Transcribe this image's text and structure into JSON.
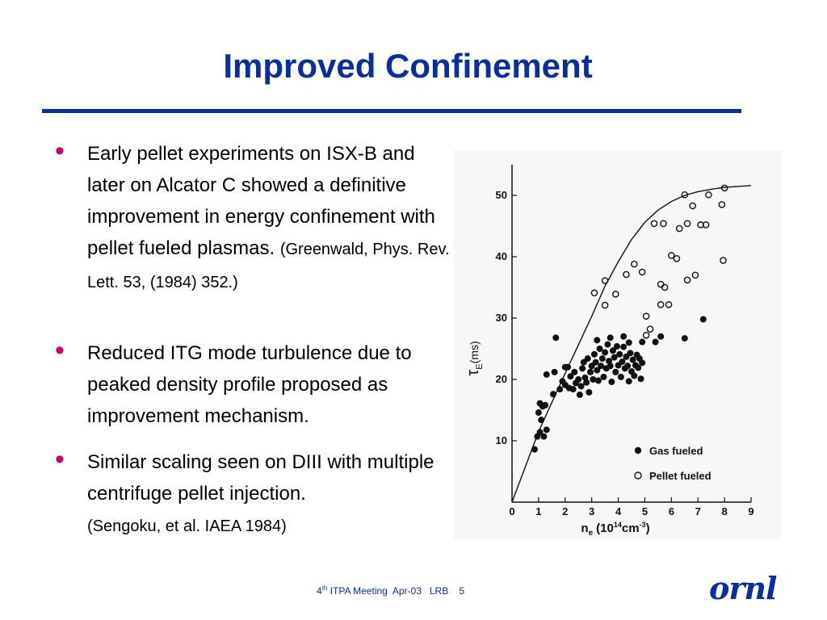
{
  "slide": {
    "title": "Improved Confinement",
    "bullets": [
      {
        "text": "Early pellet experiments on ISX-B and later on Alcator C showed a definitive improvement in energy confinement with pellet fueled plasmas.",
        "ref": "(Greenwald, Phys. Rev. Lett. 53, (1984) 352.)"
      },
      {
        "text": "Reduced ITG mode turbulence due to peaked density profile proposed as improvement mechanism.",
        "ref": ""
      },
      {
        "text": "Similar scaling seen on DIII with multiple centrifuge pellet injection.",
        "ref": "(Sengoku, et al. IAEA 1984)"
      }
    ],
    "bullet_color": "#d0006f",
    "accent_color": "#0a2e9c"
  },
  "footer": {
    "meeting_sup": "th",
    "meeting_num": "4",
    "meeting_text": " ITPA Meeting  Apr-03   LRB    5",
    "logo_text": "ornl"
  },
  "chart_data": {
    "type": "scatter",
    "xlim": [
      0,
      9
    ],
    "ylim": [
      0,
      55
    ],
    "x_ticks": [
      "0",
      "1",
      "2",
      "3",
      "4",
      "5",
      "6",
      "7",
      "8",
      "9"
    ],
    "y_ticks": [
      "10",
      "20",
      "30",
      "40",
      "50"
    ],
    "y_tick_values": [
      10,
      20,
      30,
      40,
      50
    ],
    "ylabel_main": "τ",
    "ylabel_sub": "E",
    "ylabel_unit": "(ms)",
    "xlabel_main": "n",
    "xlabel_sub": "e",
    "xlabel_unit": "(10",
    "xlabel_exp": "14",
    "xlabel_unit2": "cm",
    "xlabel_exp2": "-3",
    "xlabel_close": ")",
    "legend_position": "bottom-right",
    "series": [
      {
        "name": "Gas fueled",
        "marker": "filled",
        "points": [
          [
            0.85,
            8.6
          ],
          [
            0.95,
            10.7
          ],
          [
            1.05,
            11.4
          ],
          [
            1.1,
            13.4
          ],
          [
            1.0,
            14.6
          ],
          [
            1.15,
            15.6
          ],
          [
            1.05,
            16.1
          ],
          [
            1.25,
            15.8
          ],
          [
            1.2,
            10.7
          ],
          [
            1.3,
            11.8
          ],
          [
            1.55,
            17.6
          ],
          [
            1.6,
            21.2
          ],
          [
            1.8,
            18.4
          ],
          [
            1.9,
            19.7
          ],
          [
            2.0,
            19.1
          ],
          [
            2.1,
            22.0
          ],
          [
            2.15,
            18.6
          ],
          [
            2.2,
            20.5
          ],
          [
            2.3,
            18.4
          ],
          [
            2.35,
            21.2
          ],
          [
            2.4,
            19.4
          ],
          [
            2.5,
            20.0
          ],
          [
            2.55,
            17.5
          ],
          [
            2.6,
            18.9
          ],
          [
            2.65,
            21.8
          ],
          [
            2.7,
            22.8
          ],
          [
            2.75,
            20.3
          ],
          [
            2.8,
            19.5
          ],
          [
            2.85,
            23.4
          ],
          [
            2.9,
            17.9
          ],
          [
            2.95,
            21.2
          ],
          [
            3.0,
            22.2
          ],
          [
            3.05,
            20.0
          ],
          [
            3.1,
            24.1
          ],
          [
            3.15,
            22.8
          ],
          [
            3.2,
            21.5
          ],
          [
            3.25,
            19.8
          ],
          [
            3.3,
            25.0
          ],
          [
            3.35,
            22.2
          ],
          [
            3.4,
            23.4
          ],
          [
            3.45,
            20.4
          ],
          [
            3.5,
            24.4
          ],
          [
            3.55,
            21.8
          ],
          [
            3.6,
            25.7
          ],
          [
            3.65,
            23.0
          ],
          [
            3.7,
            22.2
          ],
          [
            3.75,
            19.6
          ],
          [
            3.8,
            24.7
          ],
          [
            3.85,
            23.6
          ],
          [
            3.9,
            21.2
          ],
          [
            3.95,
            25.4
          ],
          [
            4.0,
            22.3
          ],
          [
            4.05,
            24.1
          ],
          [
            4.1,
            20.4
          ],
          [
            4.15,
            22.9
          ],
          [
            4.2,
            25.3
          ],
          [
            4.25,
            21.8
          ],
          [
            4.3,
            23.7
          ],
          [
            4.35,
            22.2
          ],
          [
            4.4,
            19.7
          ],
          [
            4.45,
            24.3
          ],
          [
            4.5,
            21.3
          ],
          [
            4.55,
            23.2
          ],
          [
            4.6,
            20.6
          ],
          [
            4.65,
            22.3
          ],
          [
            4.7,
            24.0
          ],
          [
            4.75,
            21.9
          ],
          [
            4.8,
            23.4
          ],
          [
            4.85,
            20.1
          ],
          [
            4.9,
            22.7
          ],
          [
            3.2,
            26.4
          ],
          [
            3.7,
            26.8
          ],
          [
            4.4,
            26.0
          ],
          [
            4.9,
            26.1
          ],
          [
            1.3,
            20.8
          ],
          [
            2.0,
            22.0
          ],
          [
            1.65,
            26.8
          ],
          [
            4.2,
            27.0
          ],
          [
            5.4,
            26.1
          ],
          [
            5.6,
            27.0
          ],
          [
            6.5,
            26.7
          ],
          [
            7.2,
            29.8
          ]
        ]
      },
      {
        "name": "Pellet fueled",
        "marker": "open",
        "points": [
          [
            3.1,
            34.1
          ],
          [
            3.5,
            36.1
          ],
          [
            3.5,
            32.1
          ],
          [
            3.9,
            33.9
          ],
          [
            4.3,
            37.1
          ],
          [
            4.6,
            38.8
          ],
          [
            4.9,
            37.5
          ],
          [
            5.35,
            45.4
          ],
          [
            5.7,
            45.4
          ],
          [
            6.3,
            44.6
          ],
          [
            6.6,
            45.4
          ],
          [
            6.5,
            50.1
          ],
          [
            6.8,
            48.3
          ],
          [
            7.1,
            45.2
          ],
          [
            7.3,
            45.2
          ],
          [
            7.4,
            50.1
          ],
          [
            7.9,
            48.5
          ],
          [
            8.0,
            51.2
          ],
          [
            6.0,
            40.2
          ],
          [
            6.2,
            39.7
          ],
          [
            6.6,
            36.2
          ],
          [
            6.9,
            37.0
          ],
          [
            7.95,
            39.4
          ],
          [
            5.6,
            35.5
          ],
          [
            5.75,
            35.0
          ],
          [
            5.6,
            32.2
          ],
          [
            5.9,
            32.2
          ],
          [
            5.05,
            30.3
          ],
          [
            5.2,
            28.2
          ],
          [
            5.05,
            27.2
          ]
        ]
      }
    ],
    "curve": [
      [
        0,
        0
      ],
      [
        1,
        11.5
      ],
      [
        2,
        21.0
      ],
      [
        3,
        30.3
      ],
      [
        3.5,
        35.2
      ],
      [
        4,
        39.2
      ],
      [
        4.5,
        42.8
      ],
      [
        5,
        45.6
      ],
      [
        5.5,
        47.6
      ],
      [
        6,
        49.0
      ],
      [
        6.5,
        50.0
      ],
      [
        7,
        50.6
      ],
      [
        7.5,
        51.0
      ],
      [
        8,
        51.3
      ],
      [
        9,
        51.6
      ]
    ]
  }
}
